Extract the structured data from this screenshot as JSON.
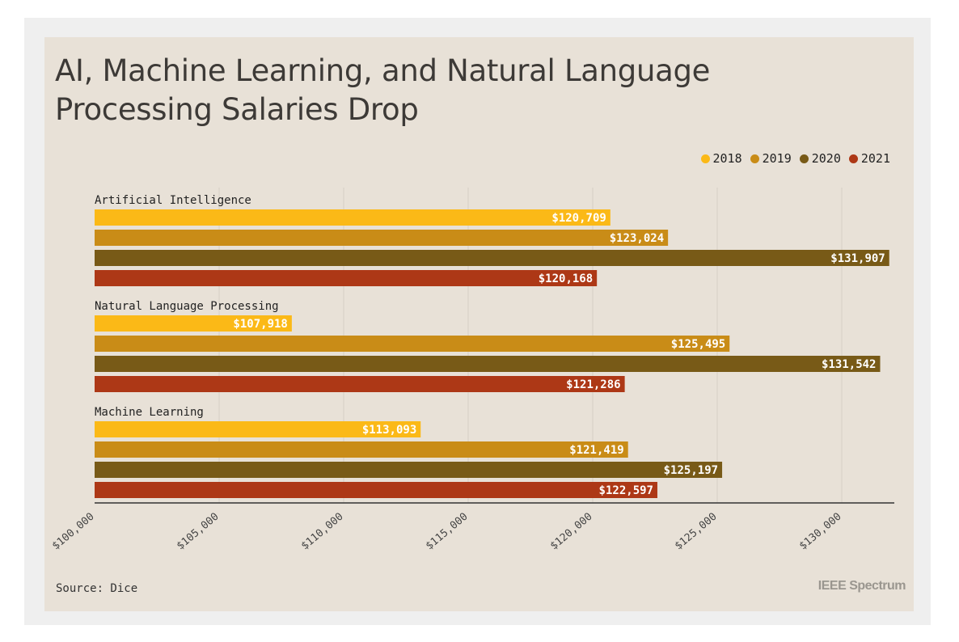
{
  "chart_data": {
    "type": "bar",
    "orientation": "horizontal",
    "title": "AI, Machine Learning, and Natural Language Processing Salaries Drop",
    "categories": [
      "Artificial Intelligence",
      "Natural Language Processing",
      "Machine Learning"
    ],
    "series": [
      {
        "name": "2018",
        "color": "#fbb917",
        "values": [
          120709,
          107918,
          113093
        ],
        "labels": [
          "$120,709",
          "$107,918",
          "$113,093"
        ]
      },
      {
        "name": "2019",
        "color": "#c98c17",
        "values": [
          123024,
          125495,
          121419
        ],
        "labels": [
          "$123,024",
          "$125,495",
          "$121,419"
        ]
      },
      {
        "name": "2020",
        "color": "#785a17",
        "values": [
          131907,
          131542,
          125197
        ],
        "labels": [
          "$131,907",
          "$131,542",
          "$125,197"
        ]
      },
      {
        "name": "2021",
        "color": "#ad3816",
        "values": [
          120168,
          121286,
          122597
        ],
        "labels": [
          "$120,168",
          "$121,286",
          "$122,597"
        ]
      }
    ],
    "xlim": [
      100000,
      132000
    ],
    "xticks": [
      100000,
      105000,
      110000,
      115000,
      120000,
      125000,
      130000
    ],
    "xtick_labels": [
      "$100,000",
      "$105,000",
      "$110,000",
      "$115,000",
      "$120,000",
      "$125,000",
      "$130,000"
    ],
    "grid": true,
    "legend_position": "top-right"
  },
  "footer": {
    "source": "Source: Dice",
    "brand": "IEEE Spectrum"
  }
}
